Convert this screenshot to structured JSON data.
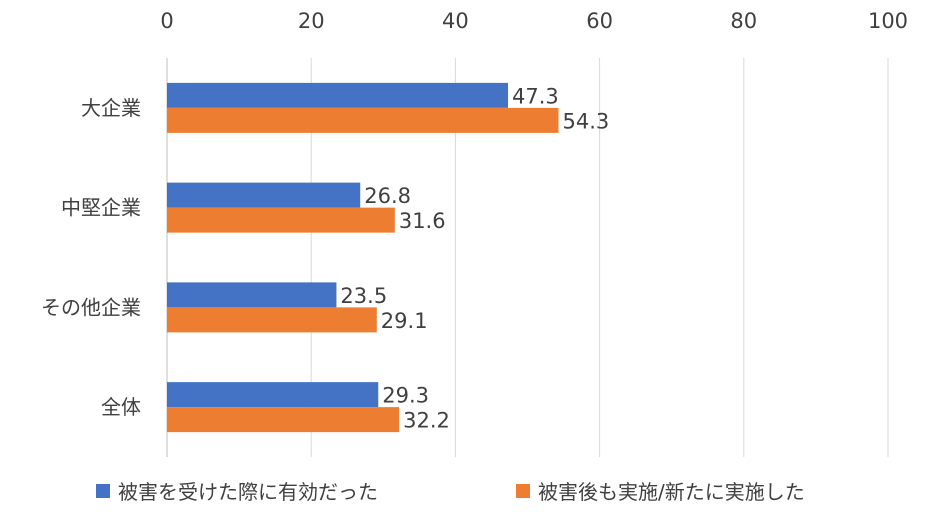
{
  "chart_data": {
    "type": "bar",
    "orientation": "horizontal",
    "categories": [
      "大企業",
      "中堅企業",
      "その他企業",
      "全体"
    ],
    "series": [
      {
        "name": "被害を受けた際に有効だった",
        "color": "#4472C4",
        "values": [
          47.3,
          26.8,
          23.5,
          29.3
        ]
      },
      {
        "name": "被害後も実施/新たに実施した",
        "color": "#ED7D31",
        "values": [
          54.3,
          31.6,
          29.1,
          32.2
        ]
      }
    ],
    "xlim": [
      0,
      100
    ],
    "x_ticks": [
      0,
      20,
      40,
      60,
      80,
      100
    ],
    "x_axis_position": "top",
    "grid": true,
    "legend_position": "bottom",
    "data_labels": true
  }
}
